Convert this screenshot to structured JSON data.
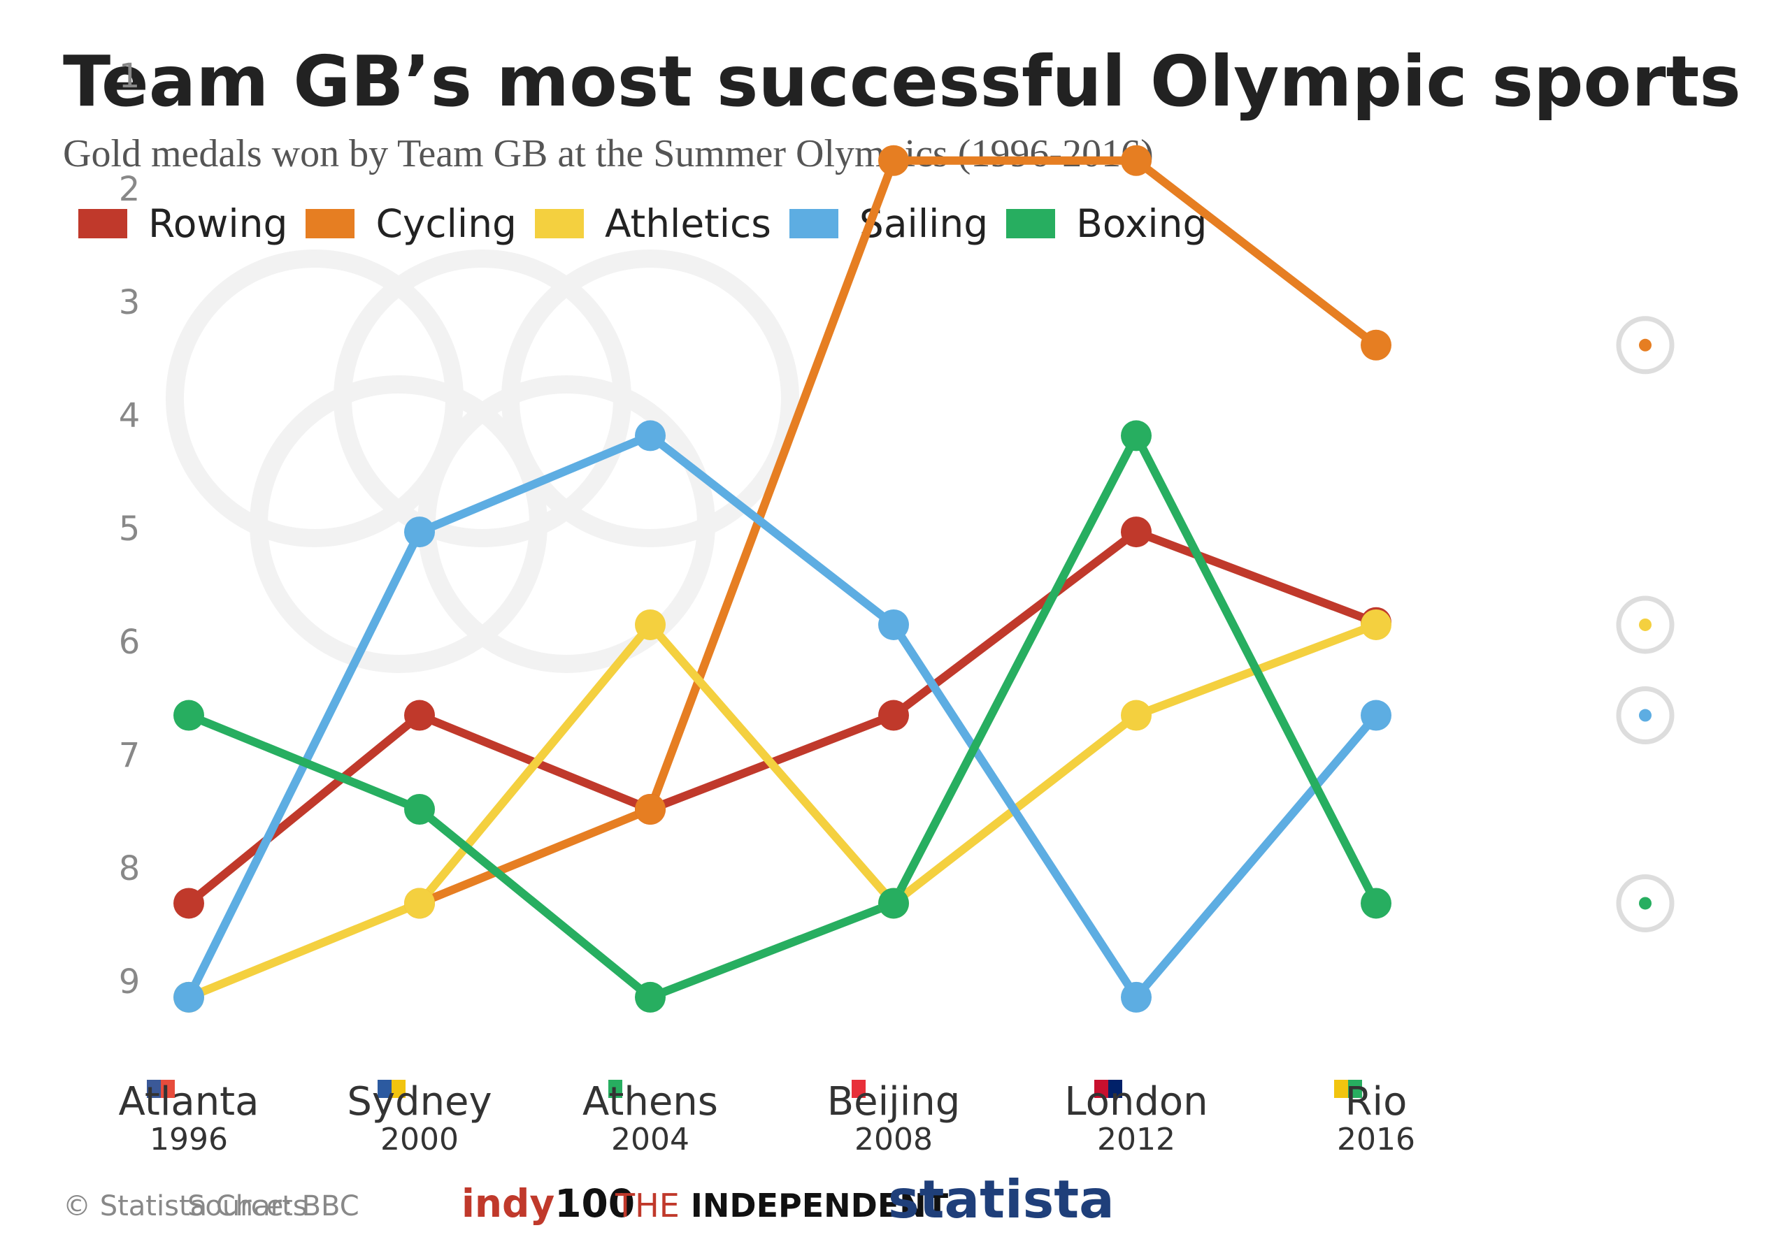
{
  "header": {
    "title": "Team GB’s most successful Olympic sports",
    "subtitle": "Gold medals won by Team GB at the Summer Olympics (1996-2016)"
  },
  "footer": {
    "copyright": "© Statista Charts",
    "source": "Source: BBC",
    "logo_indy_a": "indy",
    "logo_indy_b": "100",
    "logo_ind_the": "THE",
    "logo_ind_name": "INDEPENDENT",
    "logo_statista": "statista"
  },
  "icons": [
    "cycling-icon",
    "athletics-icon",
    "sailing-icon",
    "boxing-icon",
    "olympic-rings-watermark"
  ],
  "chart_data": {
    "type": "line",
    "title": "Team GB’s most successful Olympic sports",
    "subtitle": "Gold medals won by Team GB at the Summer Olympics (1996-2016)",
    "y_axis": {
      "ticks": [
        "1",
        "2",
        "3",
        "4",
        "5",
        "6",
        "7",
        "8",
        "9"
      ],
      "range": [
        1,
        9.5
      ],
      "reversed": true
    },
    "grid": false,
    "legend_position": "top-left",
    "categories": [
      {
        "city": "Atlanta",
        "year": "1996",
        "flag_colors": [
          "#3b5998",
          "#e74c3c"
        ]
      },
      {
        "city": "Sydney",
        "year": "2000",
        "flag_colors": [
          "#2c5aa0",
          "#f1c40f"
        ]
      },
      {
        "city": "Athens",
        "year": "2004",
        "flag_colors": [
          "#27ae60"
        ]
      },
      {
        "city": "Beijing",
        "year": "2008",
        "flag_colors": [
          "#e8303a"
        ]
      },
      {
        "city": "London",
        "year": "2012",
        "flag_colors": [
          "#c8102e",
          "#012169"
        ]
      },
      {
        "city": "Rio",
        "year": "2016",
        "flag_colors": [
          "#f1c40f",
          "#27ae60"
        ]
      }
    ],
    "series": [
      {
        "name": "Rowing",
        "color": "#c0392b",
        "values": [
          8.33,
          6.67,
          7.5,
          6.67,
          5.05,
          5.85
        ]
      },
      {
        "name": "Cycling",
        "color": "#e67e22",
        "values": [
          null,
          8.33,
          7.5,
          1.77,
          1.77,
          3.4
        ]
      },
      {
        "name": "Athletics",
        "color": "#f4d03f",
        "values": [
          9.16,
          8.33,
          5.87,
          8.33,
          6.67,
          5.87
        ]
      },
      {
        "name": "Sailing",
        "color": "#5dade2",
        "values": [
          9.16,
          5.05,
          4.2,
          5.87,
          9.16,
          6.67
        ]
      },
      {
        "name": "Boxing",
        "color": "#27ae60",
        "values": [
          6.67,
          7.5,
          9.16,
          8.33,
          4.2,
          8.33
        ]
      }
    ],
    "side_icons": [
      {
        "series": "Cycling",
        "icon": "cycling-icon",
        "value": 3.4
      },
      {
        "series": "Athletics",
        "icon": "athletics-icon",
        "value": 5.87
      },
      {
        "series": "Sailing",
        "icon": "sailing-icon",
        "value": 6.67
      },
      {
        "series": "Boxing",
        "icon": "boxing-icon",
        "value": 8.33
      }
    ]
  }
}
